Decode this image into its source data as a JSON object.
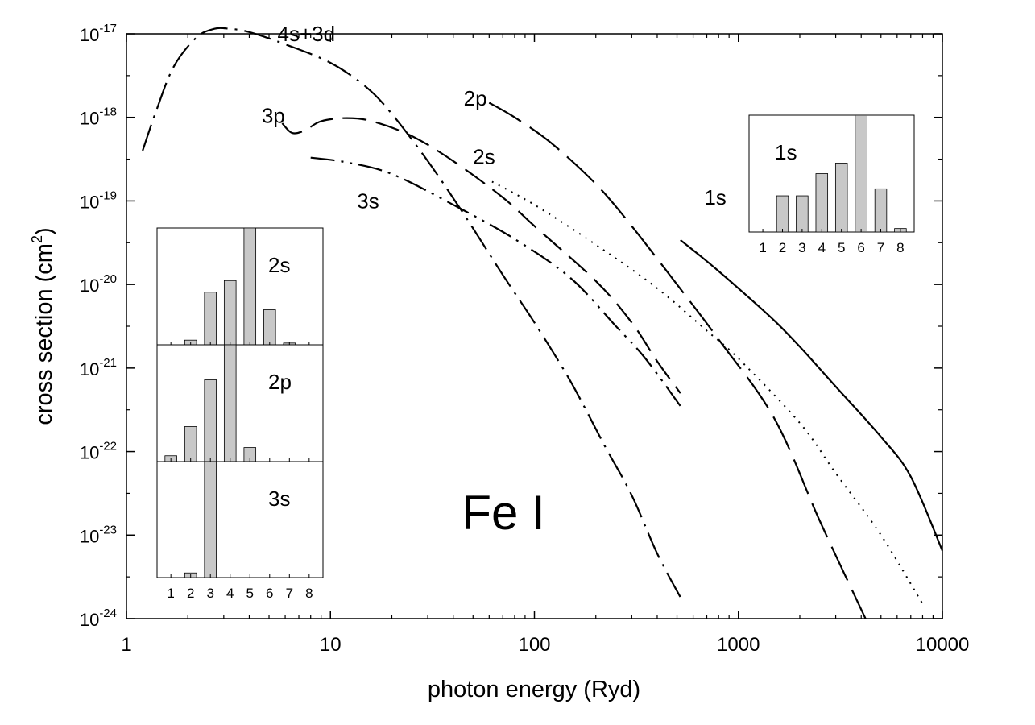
{
  "chart_data": {
    "type": "line",
    "title": "Fe I",
    "xlabel": "photon energy (Ryd)",
    "ylabel": "cross section (cm",
    "ylabel_sup": "2",
    "ylabel_end": ")",
    "x_scale": "log",
    "y_scale": "log",
    "xlim": [
      1,
      10000
    ],
    "ylim": [
      1e-24,
      1e-17
    ],
    "x_ticks": [
      {
        "value": 1,
        "label": "1"
      },
      {
        "value": 10,
        "label": "10"
      },
      {
        "value": 100,
        "label": "100"
      },
      {
        "value": 1000,
        "label": "1000"
      },
      {
        "value": 10000,
        "label": "10000"
      }
    ],
    "y_ticks": [
      {
        "value": 1e-17,
        "base": "10",
        "exp": "-17"
      },
      {
        "value": 1e-18,
        "base": "10",
        "exp": "-18"
      },
      {
        "value": 1e-19,
        "base": "10",
        "exp": "-19"
      },
      {
        "value": 1e-20,
        "base": "10",
        "exp": "-20"
      },
      {
        "value": 1e-21,
        "base": "10",
        "exp": "-21"
      },
      {
        "value": 1e-22,
        "base": "10",
        "exp": "-22"
      },
      {
        "value": 1e-23,
        "base": "10",
        "exp": "-23"
      },
      {
        "value": 1e-24,
        "base": "10",
        "exp": "-24"
      }
    ],
    "series": [
      {
        "name": "4s+3d",
        "dash": "dashdot",
        "label_at": [
          5.5,
          1e-17
        ],
        "points": [
          [
            1.2,
            4e-19
          ],
          [
            1.4,
            1.2e-18
          ],
          [
            1.7,
            4e-18
          ],
          [
            2.2,
            9e-18
          ],
          [
            2.7,
            1.15e-17
          ],
          [
            3.2,
            1.15e-17
          ],
          [
            4,
            1.05e-17
          ],
          [
            6,
            7.5e-18
          ],
          [
            10,
            4.5e-18
          ],
          [
            15,
            2.3e-18
          ],
          [
            20,
            1.1e-18
          ],
          [
            30,
            3e-19
          ],
          [
            45,
            7e-20
          ],
          [
            70,
            1.3e-20
          ],
          [
            100,
            3.5e-21
          ],
          [
            150,
            7e-22
          ],
          [
            220,
            1.2e-22
          ],
          [
            300,
            3e-23
          ],
          [
            400,
            6e-24
          ],
          [
            520,
            1.8e-24
          ]
        ]
      },
      {
        "name": "3p",
        "dash": "dashed",
        "label_at": [
          4.6,
          1.05e-18
        ],
        "points": [
          [
            5.8,
            8.5e-19
          ],
          [
            6.5,
            6.5e-19
          ],
          [
            7.5,
            7e-19
          ],
          [
            9,
            9e-19
          ],
          [
            12,
            9.8e-19
          ],
          [
            16,
            9e-19
          ],
          [
            25,
            6e-19
          ],
          [
            40,
            3e-19
          ],
          [
            70,
            1.1e-19
          ],
          [
            100,
            5e-20
          ],
          [
            200,
            1.1e-20
          ],
          [
            300,
            3.5e-21
          ],
          [
            400,
            1.2e-21
          ],
          [
            520,
            5e-22
          ]
        ]
      },
      {
        "name": "3s",
        "dash": "dashdotdot",
        "label_at": [
          13.5,
          1e-19
        ],
        "points": [
          [
            8,
            3.3e-19
          ],
          [
            12,
            2.9e-19
          ],
          [
            20,
            2.1e-19
          ],
          [
            40,
            9e-20
          ],
          [
            80,
            3.5e-20
          ],
          [
            150,
            1.2e-20
          ],
          [
            250,
            3.2e-21
          ],
          [
            350,
            1.3e-21
          ],
          [
            520,
            3.5e-22
          ]
        ]
      },
      {
        "name": "2p",
        "dash": "longdash",
        "label_at": [
          45,
          1.7e-18
        ],
        "points": [
          [
            60,
            1.5e-18
          ],
          [
            80,
            1e-18
          ],
          [
            120,
            5e-19
          ],
          [
            200,
            1.6e-19
          ],
          [
            300,
            5e-20
          ],
          [
            500,
            1e-20
          ],
          [
            800,
            2.2e-21
          ],
          [
            1500,
            2.5e-22
          ],
          [
            2500,
            1.5e-23
          ],
          [
            4200,
            1e-24
          ]
        ]
      },
      {
        "name": "2s",
        "dash": "dotted",
        "label_at": [
          50,
          3.4e-19
        ],
        "points": [
          [
            62,
            1.7e-19
          ],
          [
            100,
            9e-20
          ],
          [
            200,
            3e-20
          ],
          [
            400,
            9e-21
          ],
          [
            700,
            2.8e-21
          ],
          [
            1000,
            1.3e-21
          ],
          [
            2000,
            2.2e-22
          ],
          [
            3000,
            5.5e-23
          ],
          [
            5000,
            1e-23
          ],
          [
            8000,
            1.5e-24
          ]
        ]
      },
      {
        "name": "1s",
        "dash": "solid",
        "label_at": [
          680,
          1.1e-19
        ],
        "points": [
          [
            520,
            3.4e-20
          ],
          [
            700,
            1.9e-20
          ],
          [
            1000,
            9e-21
          ],
          [
            1500,
            3.7e-21
          ],
          [
            2000,
            1.8e-21
          ],
          [
            3000,
            6e-22
          ],
          [
            5000,
            1.5e-22
          ],
          [
            7000,
            5e-23
          ],
          [
            10000,
            6.5e-24
          ]
        ]
      }
    ],
    "insets": [
      {
        "label": "2s",
        "categories": [
          "1",
          "2",
          "3",
          "4",
          "5",
          "6",
          "7",
          "8"
        ],
        "values": [
          0,
          0.04,
          0.45,
          0.55,
          1.0,
          0.3,
          0.015,
          0
        ]
      },
      {
        "label": "2p",
        "categories": [
          "1",
          "2",
          "3",
          "4",
          "5",
          "6",
          "7",
          "8"
        ],
        "values": [
          0.05,
          0.3,
          0.7,
          1.0,
          0.12,
          0,
          0,
          0
        ]
      },
      {
        "label": "3s",
        "categories": [
          "1",
          "2",
          "3",
          "4",
          "5",
          "6",
          "7",
          "8"
        ],
        "values": [
          0,
          0.04,
          1.0,
          0,
          0,
          0,
          0,
          0
        ]
      },
      {
        "label": "1s",
        "categories": [
          "1",
          "2",
          "3",
          "4",
          "5",
          "6",
          "7",
          "8"
        ],
        "values": [
          0,
          0.31,
          0.31,
          0.5,
          0.59,
          1.0,
          0.37,
          0.03
        ]
      }
    ]
  }
}
